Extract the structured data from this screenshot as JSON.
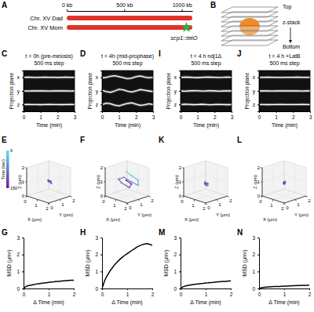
{
  "chromosome_map": {
    "panel": "A",
    "axis": {
      "lim": [
        0,
        1091
      ],
      "ticks": [
        {
          "value": 0,
          "label": "0 kb"
        },
        {
          "value": 500,
          "label": "500 kb"
        },
        {
          "value": 1000,
          "label": "1000 kb"
        }
      ]
    },
    "chromosomes": [
      {
        "label": "Chr. XV Dad",
        "color": "#e0322b"
      },
      {
        "label": "Chr. XV Mom",
        "color": "#e0322b"
      }
    ],
    "marker": {
      "label": "scp1::tetO",
      "position": 1040,
      "color": "#2fae4a"
    }
  },
  "z_stack": {
    "panel": "B",
    "labels": {
      "top": "Top",
      "middle": "z-stack",
      "bottom": "Bottom"
    },
    "color": "#f08a24"
  },
  "chart_data": [
    {
      "panel": "C",
      "type": "kymograph",
      "title": "t = 0h (pre-meiosis)",
      "subtitle": "500 ms step",
      "x_label": "Time (min)",
      "y_label": "Projection plane",
      "color": "#ffffff",
      "xlim": [
        0,
        3
      ],
      "xticks": [
        0,
        1,
        2,
        3
      ],
      "ylim": [
        0,
        3
      ],
      "yticks": [
        {
          "value": 2.5,
          "label": "x"
        },
        {
          "value": 1.5,
          "label": "y"
        },
        {
          "value": 0.5,
          "label": "z"
        }
      ],
      "x": [
        0,
        0.25,
        0.5,
        0.75,
        1,
        1.25,
        1.5,
        1.75,
        2,
        2.25,
        2.5,
        2.75,
        3
      ],
      "series": [
        {
          "values": [
            2.5,
            2.51,
            2.5,
            2.49,
            2.5,
            2.51,
            2.5,
            2.5,
            2.49,
            2.5,
            2.51,
            2.5,
            2.5
          ]
        },
        {
          "values": [
            1.5,
            1.49,
            1.5,
            1.51,
            1.5,
            1.5,
            1.49,
            1.5,
            1.51,
            1.5,
            1.5,
            1.49,
            1.5
          ]
        },
        {
          "values": [
            0.5,
            0.51,
            0.5,
            0.5,
            0.49,
            0.5,
            0.51,
            0.5,
            0.5,
            0.49,
            0.5,
            0.51,
            0.5
          ]
        }
      ]
    },
    {
      "panel": "D",
      "type": "kymograph",
      "title": "t = 4h (mid-prophase)",
      "subtitle": "500 ms step",
      "x_label": "Time (min)",
      "y_label": "Projection plane",
      "color": "#ffffff",
      "xlim": [
        0,
        3
      ],
      "xticks": [
        0,
        1,
        2,
        3
      ],
      "ylim": [
        0,
        3
      ],
      "yticks": [
        {
          "value": 2.5,
          "label": "x"
        },
        {
          "value": 1.5,
          "label": "y"
        },
        {
          "value": 0.5,
          "label": "z"
        }
      ],
      "x": [
        0,
        0.25,
        0.5,
        0.75,
        1,
        1.25,
        1.5,
        1.75,
        2,
        2.25,
        2.5,
        2.75,
        3
      ],
      "series": [
        {
          "values": [
            2.45,
            2.5,
            2.58,
            2.62,
            2.55,
            2.48,
            2.4,
            2.45,
            2.55,
            2.6,
            2.52,
            2.47,
            2.5
          ]
        },
        {
          "values": [
            1.55,
            1.45,
            1.4,
            1.5,
            1.62,
            1.58,
            1.48,
            1.42,
            1.5,
            1.6,
            1.55,
            1.5,
            1.45
          ]
        },
        {
          "values": [
            0.5,
            0.6,
            0.55,
            0.45,
            0.4,
            0.5,
            0.58,
            0.62,
            0.52,
            0.44,
            0.48,
            0.55,
            0.5
          ]
        }
      ]
    },
    {
      "panel": "I",
      "type": "kymograph",
      "title": "t = 4 h ndj1Δ",
      "subtitle": "500 ms step",
      "x_label": "Time (min)",
      "y_label": "Projection plane",
      "color": "#ffffff",
      "xlim": [
        0,
        3
      ],
      "xticks": [
        0,
        1,
        2,
        3
      ],
      "ylim": [
        0,
        3
      ],
      "yticks": [
        {
          "value": 2.5,
          "label": "x"
        },
        {
          "value": 1.5,
          "label": "y"
        },
        {
          "value": 0.5,
          "label": "z"
        }
      ],
      "x": [
        0,
        0.25,
        0.5,
        0.75,
        1,
        1.25,
        1.5,
        1.75,
        2,
        2.25,
        2.5,
        2.75,
        3
      ],
      "series": [
        {
          "values": [
            2.5,
            2.52,
            2.51,
            2.49,
            2.48,
            2.5,
            2.52,
            2.51,
            2.5,
            2.49,
            2.5,
            2.52,
            2.5
          ]
        },
        {
          "values": [
            1.5,
            1.48,
            1.5,
            1.52,
            1.51,
            1.49,
            1.5,
            1.52,
            1.5,
            1.48,
            1.5,
            1.51,
            1.5
          ]
        },
        {
          "values": [
            0.5,
            0.52,
            0.51,
            0.49,
            0.5,
            0.52,
            0.5,
            0.48,
            0.5,
            0.51,
            0.5,
            0.49,
            0.5
          ]
        }
      ]
    },
    {
      "panel": "J",
      "type": "kymograph",
      "title": "t = 4 h +LatB",
      "subtitle": "500 ms step",
      "x_label": "Time (min)",
      "y_label": "Projection plane",
      "color": "#ffffff",
      "xlim": [
        0,
        3
      ],
      "xticks": [
        0,
        1,
        2,
        3
      ],
      "ylim": [
        0,
        3
      ],
      "yticks": [
        {
          "value": 2.5,
          "label": "x"
        },
        {
          "value": 1.5,
          "label": "y"
        },
        {
          "value": 0.5,
          "label": "z"
        }
      ],
      "x": [
        0,
        0.25,
        0.5,
        0.75,
        1,
        1.25,
        1.5,
        1.75,
        2,
        2.25,
        2.5,
        2.75,
        3
      ],
      "series": [
        {
          "values": [
            2.5,
            2.5,
            2.51,
            2.5,
            2.5,
            2.49,
            2.5,
            2.5,
            2.5,
            2.51,
            2.5,
            2.5,
            2.5
          ]
        },
        {
          "values": [
            1.5,
            1.5,
            1.5,
            1.49,
            1.5,
            1.5,
            1.51,
            1.5,
            1.5,
            1.5,
            1.49,
            1.5,
            1.5
          ]
        },
        {
          "values": [
            0.5,
            0.5,
            0.49,
            0.5,
            0.5,
            0.51,
            0.5,
            0.5,
            0.5,
            0.5,
            0.51,
            0.5,
            0.5
          ]
        }
      ]
    },
    {
      "panel": "E",
      "type": "trajectory3d",
      "x_label": "X (μm)",
      "y_label": "Y (μm)",
      "z_label": "Z (μm)",
      "xlim": [
        0,
        2
      ],
      "xticks": [
        0,
        1,
        2
      ],
      "ylim": [
        0,
        2
      ],
      "yticks": [
        0,
        1,
        2
      ],
      "zlim": [
        0,
        2
      ],
      "zticks": [
        0,
        1,
        2
      ],
      "points": {
        "x": [
          1.0,
          1.1,
          1.2,
          1.05,
          0.95,
          1.1,
          1.25,
          1.15,
          1.0,
          0.9,
          1.05
        ],
        "y": [
          1.0,
          0.9,
          1.05,
          1.15,
          1.0,
          0.85,
          0.95,
          1.1,
          1.2,
          1.05,
          0.95
        ],
        "z": [
          1.0,
          1.1,
          0.95,
          0.9,
          1.05,
          1.15,
          1.0,
          0.9,
          1.0,
          1.1,
          1.05
        ],
        "t": [
          0,
          15,
          30,
          45,
          60,
          75,
          90,
          105,
          120,
          135,
          150
        ]
      },
      "colorbar": {
        "label": "Time (sec)",
        "range": [
          0,
          150
        ],
        "ticks": [
          0,
          150
        ],
        "colors": [
          "#5fe0ee",
          "#6a1b9a"
        ]
      }
    },
    {
      "panel": "F",
      "type": "trajectory3d",
      "x_label": "X (μm)",
      "y_label": "Y (μm)",
      "z_label": "Z (μm)",
      "xlim": [
        0,
        2
      ],
      "xticks": [
        0,
        1,
        2
      ],
      "ylim": [
        0,
        2
      ],
      "yticks": [
        0,
        1,
        2
      ],
      "zlim": [
        0,
        2
      ],
      "zticks": [
        0,
        1,
        2
      ],
      "points": {
        "x": [
          0.7,
          0.9,
          1.3,
          1.6,
          1.4,
          1.0,
          0.6,
          0.5,
          0.9,
          1.3,
          1.1
        ],
        "y": [
          1.2,
          1.5,
          1.7,
          1.4,
          1.0,
          0.7,
          0.6,
          1.0,
          1.3,
          1.1,
          0.8
        ],
        "z": [
          1.6,
          1.3,
          1.0,
          0.8,
          1.1,
          1.4,
          1.2,
          0.8,
          0.5,
          0.9,
          1.2
        ],
        "t": [
          0,
          15,
          30,
          45,
          60,
          75,
          90,
          105,
          120,
          135,
          150
        ]
      }
    },
    {
      "panel": "K",
      "type": "trajectory3d",
      "x_label": "X (μm)",
      "y_label": "Y (μm)",
      "z_label": "Z (μm)",
      "xlim": [
        0,
        2
      ],
      "xticks": [
        0,
        1,
        2
      ],
      "ylim": [
        0,
        2
      ],
      "yticks": [
        0,
        1,
        2
      ],
      "zlim": [
        0,
        2
      ],
      "zticks": [
        0,
        1,
        2
      ],
      "points": {
        "x": [
          1.0,
          0.9,
          1.05,
          1.15,
          1.1,
          0.95,
          0.85,
          1.0,
          1.1,
          1.05,
          0.95
        ],
        "y": [
          1.0,
          1.1,
          1.2,
          1.05,
          0.9,
          0.95,
          1.1,
          1.15,
          1.0,
          0.9,
          1.0
        ],
        "z": [
          0.8,
          0.9,
          0.85,
          0.75,
          0.8,
          0.9,
          0.95,
          0.85,
          0.8,
          0.9,
          0.85
        ],
        "t": [
          0,
          15,
          30,
          45,
          60,
          75,
          90,
          105,
          120,
          135,
          150
        ]
      }
    },
    {
      "panel": "L",
      "type": "trajectory3d",
      "x_label": "X (μm)",
      "y_label": "Y (μm)",
      "z_label": "Z (μm)",
      "xlim": [
        0,
        2
      ],
      "xticks": [
        0,
        1,
        2
      ],
      "ylim": [
        0,
        2
      ],
      "yticks": [
        0,
        1,
        2
      ],
      "zlim": [
        0,
        2
      ],
      "zticks": [
        0,
        1,
        2
      ],
      "points": {
        "x": [
          1.0,
          1.05,
          0.95,
          1.0,
          1.1,
          1.05,
          0.95,
          0.9,
          1.0,
          1.05,
          1.0
        ],
        "y": [
          1.0,
          0.95,
          1.05,
          1.1,
          1.0,
          0.95,
          1.0,
          1.05,
          1.1,
          1.0,
          0.95
        ],
        "z": [
          0.9,
          0.95,
          1.0,
          0.95,
          0.9,
          0.85,
          0.9,
          0.95,
          1.0,
          0.95,
          0.9
        ],
        "t": [
          0,
          15,
          30,
          45,
          60,
          75,
          90,
          105,
          120,
          135,
          150
        ]
      }
    },
    {
      "panel": "G",
      "type": "line",
      "x_label": "Δ Time (min)",
      "y_label": "MSD (μm²)",
      "color": "#000000",
      "xlim": [
        0,
        2
      ],
      "xticks": [
        0,
        1,
        2
      ],
      "ylim": [
        0,
        3
      ],
      "yticks": [
        0,
        1,
        2,
        3
      ],
      "x": [
        0,
        0.1,
        0.2,
        0.3,
        0.4,
        0.5,
        0.6,
        0.7,
        0.8,
        0.9,
        1.0,
        1.1,
        1.2,
        1.3,
        1.4,
        1.5,
        1.6,
        1.7,
        1.8,
        1.9,
        2.0
      ],
      "values": [
        0,
        0.12,
        0.17,
        0.2,
        0.23,
        0.26,
        0.28,
        0.3,
        0.32,
        0.34,
        0.36,
        0.38,
        0.39,
        0.41,
        0.42,
        0.44,
        0.45,
        0.46,
        0.47,
        0.48,
        0.49
      ]
    },
    {
      "panel": "H",
      "type": "line",
      "x_label": "Δ Time (min)",
      "y_label": "MSD (μm²)",
      "color": "#000000",
      "xlim": [
        0,
        2
      ],
      "xticks": [
        0,
        1,
        2
      ],
      "ylim": [
        0,
        3
      ],
      "yticks": [
        0,
        1,
        2,
        3
      ],
      "x": [
        0,
        0.1,
        0.2,
        0.3,
        0.4,
        0.5,
        0.6,
        0.7,
        0.8,
        0.9,
        1.0,
        1.1,
        1.2,
        1.3,
        1.4,
        1.5,
        1.6,
        1.7,
        1.8,
        1.9,
        2.0
      ],
      "values": [
        0,
        0.45,
        0.75,
        1.0,
        1.2,
        1.4,
        1.55,
        1.7,
        1.83,
        1.95,
        2.05,
        2.15,
        2.25,
        2.35,
        2.45,
        2.52,
        2.58,
        2.62,
        2.64,
        2.6,
        2.55
      ]
    },
    {
      "panel": "M",
      "type": "line",
      "x_label": "Δ Time (min)",
      "y_label": "MSD (μm²)",
      "color": "#000000",
      "xlim": [
        0,
        2
      ],
      "xticks": [
        0,
        1,
        2
      ],
      "ylim": [
        0,
        3
      ],
      "yticks": [
        0,
        1,
        2,
        3
      ],
      "x": [
        0,
        0.1,
        0.2,
        0.3,
        0.4,
        0.5,
        0.6,
        0.7,
        0.8,
        0.9,
        1.0,
        1.1,
        1.2,
        1.3,
        1.4,
        1.5,
        1.6,
        1.7,
        1.8,
        1.9,
        2.0
      ],
      "values": [
        0,
        0.1,
        0.15,
        0.18,
        0.21,
        0.23,
        0.25,
        0.27,
        0.29,
        0.3,
        0.32,
        0.33,
        0.35,
        0.36,
        0.38,
        0.39,
        0.4,
        0.41,
        0.42,
        0.44,
        0.45
      ]
    },
    {
      "panel": "N",
      "type": "line",
      "x_label": "Δ Time (min)",
      "y_label": "MSD (μm²)",
      "color": "#000000",
      "xlim": [
        0,
        2
      ],
      "xticks": [
        0,
        1,
        2
      ],
      "ylim": [
        0,
        3
      ],
      "yticks": [
        0,
        1,
        2,
        3
      ],
      "x": [
        0,
        0.1,
        0.2,
        0.3,
        0.4,
        0.5,
        0.6,
        0.7,
        0.8,
        0.9,
        1.0,
        1.1,
        1.2,
        1.3,
        1.4,
        1.5,
        1.6,
        1.7,
        1.8,
        1.9,
        2.0
      ],
      "values": [
        0,
        0.05,
        0.07,
        0.08,
        0.09,
        0.1,
        0.11,
        0.12,
        0.12,
        0.13,
        0.14,
        0.14,
        0.15,
        0.16,
        0.16,
        0.17,
        0.17,
        0.18,
        0.18,
        0.19,
        0.2
      ]
    }
  ]
}
